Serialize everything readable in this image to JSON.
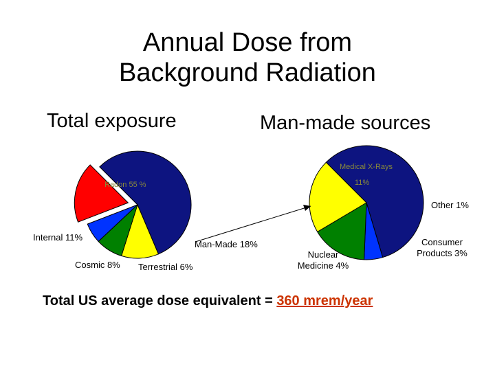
{
  "title_line1": "Annual Dose from",
  "title_line2": "Background Radiation",
  "left_heading": "Total exposure",
  "right_heading": "Man-made sources",
  "footer_prefix": "Total US average dose equivalent = ",
  "footer_value": "360 mrem/year",
  "colors": {
    "navy": "#0d1480",
    "yellow": "#ffff00",
    "green": "#008000",
    "blue": "#0033ff",
    "red": "#ff0000",
    "highlight": "#cc3300"
  },
  "chart_data": [
    {
      "type": "pie",
      "title": "Total exposure",
      "labels": {
        "radon": "Radon 55 %",
        "internal": "Internal 11%",
        "cosmic": "Cosmic 8%",
        "terrestrial": "Terrestrial 6%",
        "manmade": "Man-Made 18%"
      },
      "slices": [
        {
          "key": "radon",
          "value": 55,
          "color": "#0d1480"
        },
        {
          "key": "internal",
          "value": 11,
          "color": "#ffff00"
        },
        {
          "key": "cosmic",
          "value": 8,
          "color": "#008000"
        },
        {
          "key": "terrestrial",
          "value": 6,
          "color": "#0033ff"
        },
        {
          "key": "manmade",
          "value": 18,
          "color": "#ff0000",
          "exploded": true
        }
      ]
    },
    {
      "type": "pie",
      "title": "Man-made sources",
      "labels": {
        "xrays": "Medical X-Rays",
        "xrays_pct": "11%",
        "other": "Other 1%",
        "consumer": "Consumer\nProducts 3%",
        "nuclear": "Nuclear\nMedicine 4%"
      },
      "slices": [
        {
          "key": "xrays",
          "value": 11,
          "color": "#0d1480"
        },
        {
          "key": "other",
          "value": 1,
          "color": "#0033ff"
        },
        {
          "key": "consumer",
          "value": 3,
          "color": "#008000"
        },
        {
          "key": "nuclear",
          "value": 4,
          "color": "#ffff00"
        }
      ]
    }
  ]
}
